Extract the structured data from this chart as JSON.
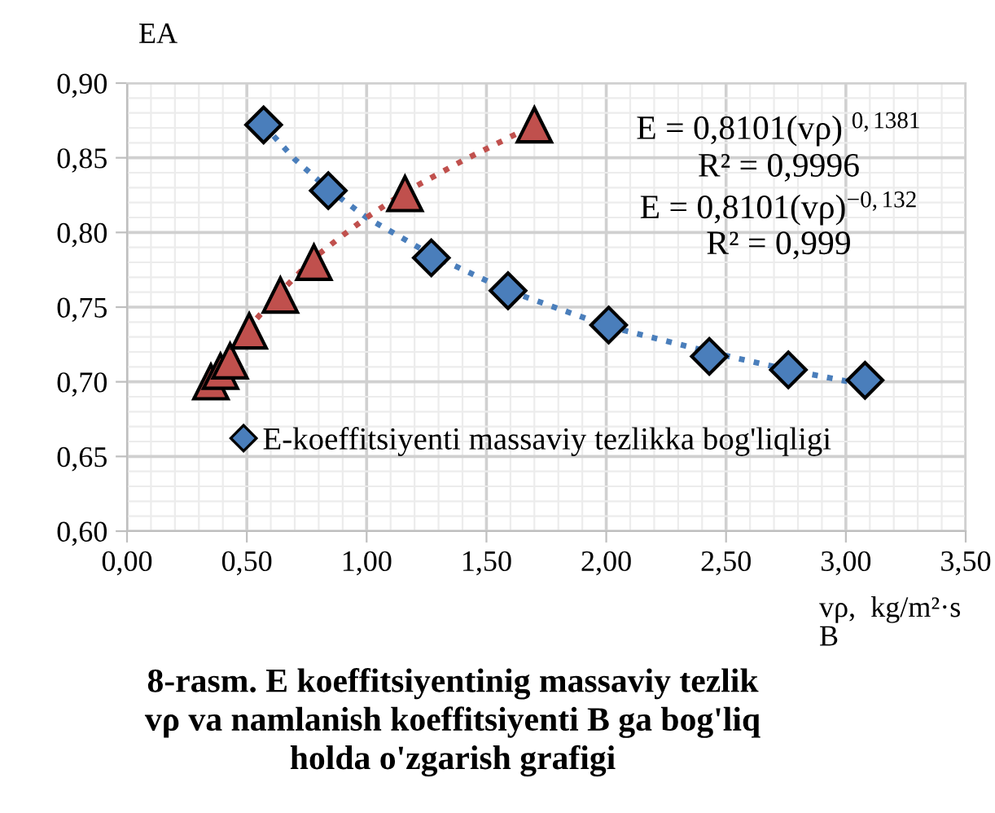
{
  "chart_data": {
    "type": "scatter",
    "title": "8-rasm. E koeffitsiyentinig massaviy tezlik\nvρ va namlanish koeffitsiyenti B ga bog'liq\nholda o'zgarish grafigi",
    "ylabel": "EA",
    "xlabel": "vρ,  kg/m²·s\nB",
    "series": [
      {
        "name": "E-koeffitsiyenti massaviy tezlikka bog'liqligi",
        "marker": "diamond",
        "color": "#4a7ebb",
        "x": [
          0.57,
          0.84,
          1.27,
          1.59,
          2.01,
          2.43,
          2.76,
          3.08
        ],
        "values": [
          0.872,
          0.828,
          0.783,
          0.761,
          0.738,
          0.717,
          0.708,
          0.701
        ]
      },
      {
        "marker": "triangle",
        "color": "#c0504d",
        "x": [
          0.35,
          0.39,
          0.43,
          0.51,
          0.64,
          0.78,
          1.16,
          1.7
        ],
        "values": [
          0.7,
          0.707,
          0.714,
          0.734,
          0.758,
          0.78,
          0.826,
          0.872
        ]
      },
      {
        "type": "line",
        "line_style": "dotted",
        "color": "#4a7ebb",
        "x": [
          0.57,
          0.7,
          0.84,
          1.0,
          1.27,
          1.59,
          2.01,
          2.43,
          2.76,
          3.08
        ],
        "values": [
          0.872,
          0.849,
          0.829,
          0.81,
          0.785,
          0.761,
          0.737,
          0.72,
          0.708,
          0.698
        ]
      },
      {
        "type": "line",
        "line_style": "dotted",
        "color": "#c0504d",
        "x": [
          0.5,
          0.64,
          0.78,
          0.9,
          1.0,
          1.16,
          1.4,
          1.7
        ],
        "values": [
          0.735,
          0.76,
          0.783,
          0.798,
          0.81,
          0.827,
          0.848,
          0.872
        ]
      }
    ],
    "annotations": [
      "E = 0,8101(vρ) $^{0,1381}$",
      "R² = 0,9996",
      "E = 0,8101(vρ)$^{−0,132}$",
      "R² = 0,999"
    ],
    "xlim": [
      0,
      3.5
    ],
    "xticks": [
      {
        "value": 0,
        "label": "0,00"
      },
      {
        "value": 0.5,
        "label": "0,50"
      },
      {
        "value": 1,
        "label": "1,00"
      },
      {
        "value": 1.5,
        "label": "1,50"
      },
      {
        "value": 2,
        "label": "2,00"
      },
      {
        "value": 2.5,
        "label": "2,50"
      },
      {
        "value": 3,
        "label": "3,00"
      },
      {
        "value": 3.5,
        "label": "3,50"
      }
    ],
    "ylim": [
      0.6,
      0.9
    ],
    "yticks": [
      {
        "value": 0.6,
        "label": "0,60"
      },
      {
        "value": 0.65,
        "label": "0,65"
      },
      {
        "value": 0.7,
        "label": "0,70"
      },
      {
        "value": 0.75,
        "label": "0,75"
      },
      {
        "value": 0.8,
        "label": "0,80"
      },
      {
        "value": 0.85,
        "label": "0,85"
      },
      {
        "value": 0.9,
        "label": "0,90"
      }
    ],
    "grid": true,
    "legend": "bottom"
  }
}
